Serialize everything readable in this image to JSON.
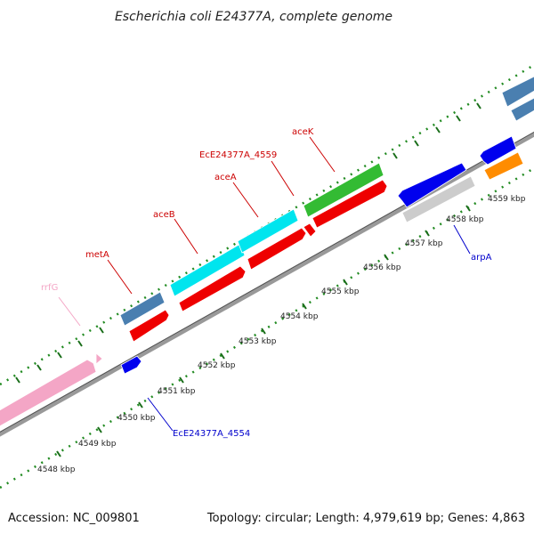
{
  "title": "Escherichia coli E24377A, complete genome",
  "footer": {
    "accession": "Accession: NC_009801",
    "summary": "Topology: circular; Length: 4,979,619 bp; Genes: 4,863"
  },
  "ticks": [
    "4548 kbp",
    "4549 kbp",
    "4550 kbp",
    "4551 kbp",
    "4552 kbp",
    "4553 kbp",
    "4554 kbp",
    "4555 kbp",
    "4556 kbp",
    "4557 kbp",
    "4558 kbp",
    "4559 kbp"
  ],
  "labels": [
    {
      "text": "rrfG",
      "color": "#f4a6c6"
    },
    {
      "text": "metA",
      "color": "#cc0000"
    },
    {
      "text": "aceB",
      "color": "#cc0000"
    },
    {
      "text": "aceA",
      "color": "#cc0000"
    },
    {
      "text": "EcE24377A_4559",
      "color": "#cc0000"
    },
    {
      "text": "aceK",
      "color": "#cc0000"
    },
    {
      "text": "EcE24377A_4554",
      "color": "#0000cc"
    },
    {
      "text": "arpA",
      "color": "#0000cc"
    }
  ],
  "colors": {
    "cds": "#ee0000",
    "gene_steel": "#4a7fb0",
    "gene_cyan": "#00e5ee",
    "gene_green": "#33bb33",
    "gene_blue": "#0000ee",
    "gene_gray": "#cccccc",
    "gene_orange": "#ff8c00",
    "rrna": "#f4a6c6",
    "backbone": "#777777",
    "dots": "#228b22"
  }
}
